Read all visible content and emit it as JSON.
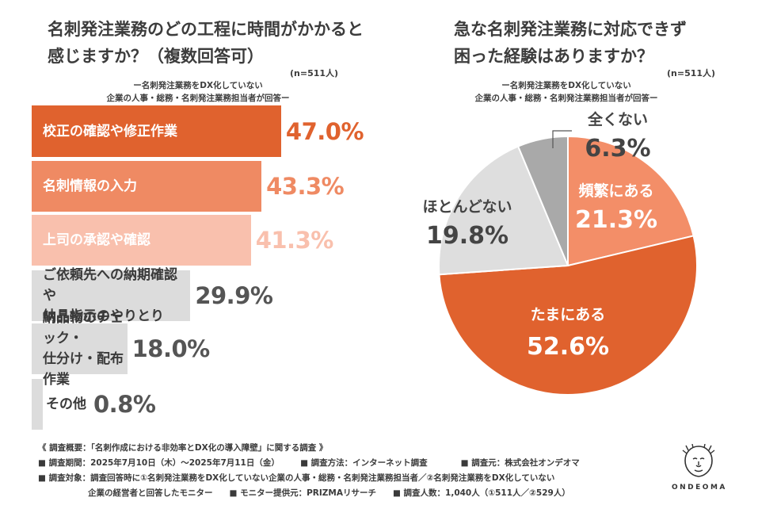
{
  "left_chart": {
    "title": "名刺発注業務のどの工程に時間がかかると\n感じますか？（複数回答可）",
    "n": "(n=511人)",
    "subtitle": "ー名刺発注業務をDX化していない\n企業の人事・総務・名刺発注業務担当者が回答ー"
  },
  "right_chart": {
    "title": "急な名刺発注業務に対応できず\n困った経験はありますか？",
    "n": "(n=511人)",
    "subtitle": "ー名刺発注業務をDX化していない\n企業の人事・総務・名刺発注業務担当者が回答ー"
  },
  "chart_data": [
    {
      "type": "bar",
      "orientation": "horizontal",
      "categories": [
        "校正の確認や修正作業",
        "名刺情報の入力",
        "上司の承認や確認",
        "ご依頼先への納期確認や\n納品指示のやりとり",
        "納品物のチェック・\n仕分け・配布作業",
        "その他"
      ],
      "values": [
        47.0,
        43.3,
        41.3,
        29.9,
        18.0,
        0.8
      ],
      "value_labels": [
        "47.0%",
        "43.3%",
        "41.3%",
        "29.9%",
        "18.0%",
        "0.8%"
      ],
      "title": "名刺発注業務のどの工程に時間がかかると感じますか？（複数回答可）",
      "bar_colors": [
        "#e0622e",
        "#ef8a63",
        "#f9c0ad",
        "#dcdcdc",
        "#dcdcdc",
        "#dcdcdc"
      ],
      "label_colors": [
        "#ffffff",
        "#ffffff",
        "#ffffff",
        "#3a3a3a",
        "#3a3a3a",
        "#3a3a3a"
      ],
      "value_colors": [
        "#e0622e",
        "#ef8a63",
        "#f9c0ad",
        "#555555",
        "#555555",
        "#555555"
      ]
    },
    {
      "type": "pie",
      "title": "急な名刺発注業務に対応できず困った経験はありますか？",
      "labels": [
        "頻繁にある",
        "たまにある",
        "ほとんどない",
        "全くない"
      ],
      "values": [
        21.3,
        52.6,
        19.8,
        6.3
      ],
      "value_labels": [
        "21.3%",
        "52.6%",
        "19.8%",
        "6.3%"
      ],
      "colors": [
        "#f38e68",
        "#e0622e",
        "#dedede",
        "#a9a9a9"
      ],
      "label_colors": [
        "#ffffff",
        "#ffffff",
        "#444444",
        "#444444"
      ]
    }
  ],
  "footer": {
    "lines": [
      "《 調査概要：「名刺作成における非効率とDX化の導入障壁」に関する調査 》",
      "■ 調査期間：2025年7月10日（木）～2025年7月11日（金）　　　■ 調査方法：インターネット調査　　　　■ 調査元：株式会社オンデオマ",
      "■ 調査対象：調査回答時に①名刺発注業務をDX化していない企業の人事・総務・名刺発注業務担当者／②名刺発注業務をDX化していない",
      "　　　　　　企業の経営者と回答したモニター　　■ モニター提供元：PRIZMAリサーチ　　■ 調査人数：1,040人（①511人／②529人）"
    ]
  },
  "logo": {
    "text": "ONDEOMA",
    "icon": "lion-icon"
  }
}
